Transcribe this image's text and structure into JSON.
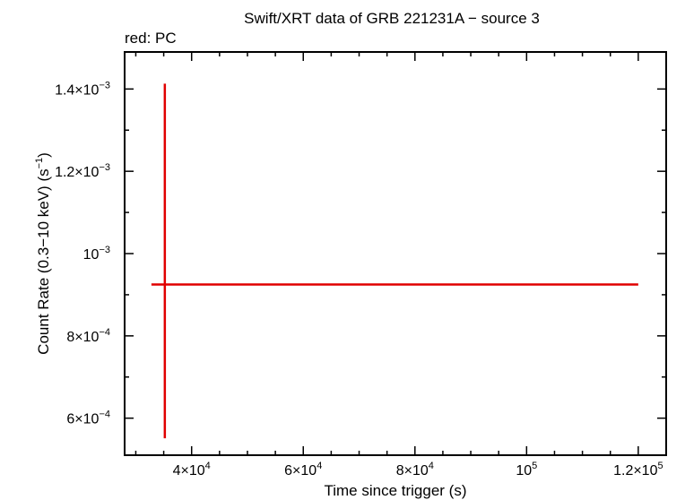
{
  "chart_data": {
    "type": "scatter",
    "title": "Swift/XRT data of GRB 221231A − source 3",
    "subtitle": "red: PC",
    "xlabel": "Time since trigger (s)",
    "ylabel_main": "Count Rate (0.3−10 keV) (s",
    "ylabel_exp": "−1",
    "ylabel_close": ")",
    "xlim": [
      28000,
      125000
    ],
    "ylim": [
      0.00051,
      0.00149
    ],
    "grid": false,
    "legend": "none",
    "x_ticks": [
      {
        "value": 40000,
        "mantissa": "4×10",
        "exp": "4"
      },
      {
        "value": 60000,
        "mantissa": "6×10",
        "exp": "4"
      },
      {
        "value": 80000,
        "mantissa": "8×10",
        "exp": "4"
      },
      {
        "value": 100000,
        "mantissa": "10",
        "exp": "5"
      },
      {
        "value": 120000,
        "mantissa": "1.2×10",
        "exp": "5"
      }
    ],
    "x_minor_step": 5000,
    "y_ticks": [
      {
        "value": 0.0006,
        "mantissa": "6×10",
        "exp": "−4"
      },
      {
        "value": 0.0008,
        "mantissa": "8×10",
        "exp": "−4"
      },
      {
        "value": 0.001,
        "mantissa": "10",
        "exp": "−3"
      },
      {
        "value": 0.0012,
        "mantissa": "1.2×10",
        "exp": "−3"
      },
      {
        "value": 0.0014,
        "mantissa": "1.4×10",
        "exp": "−3"
      }
    ],
    "y_minor_step": 0.0001,
    "series": [
      {
        "color": "#e00000",
        "points": [
          {
            "x": 35200,
            "y": 0.000925,
            "xerr_low": 32800,
            "xerr_high": 120000,
            "yerr_low": 0.000551,
            "yerr_high": 0.001413
          }
        ]
      }
    ]
  }
}
